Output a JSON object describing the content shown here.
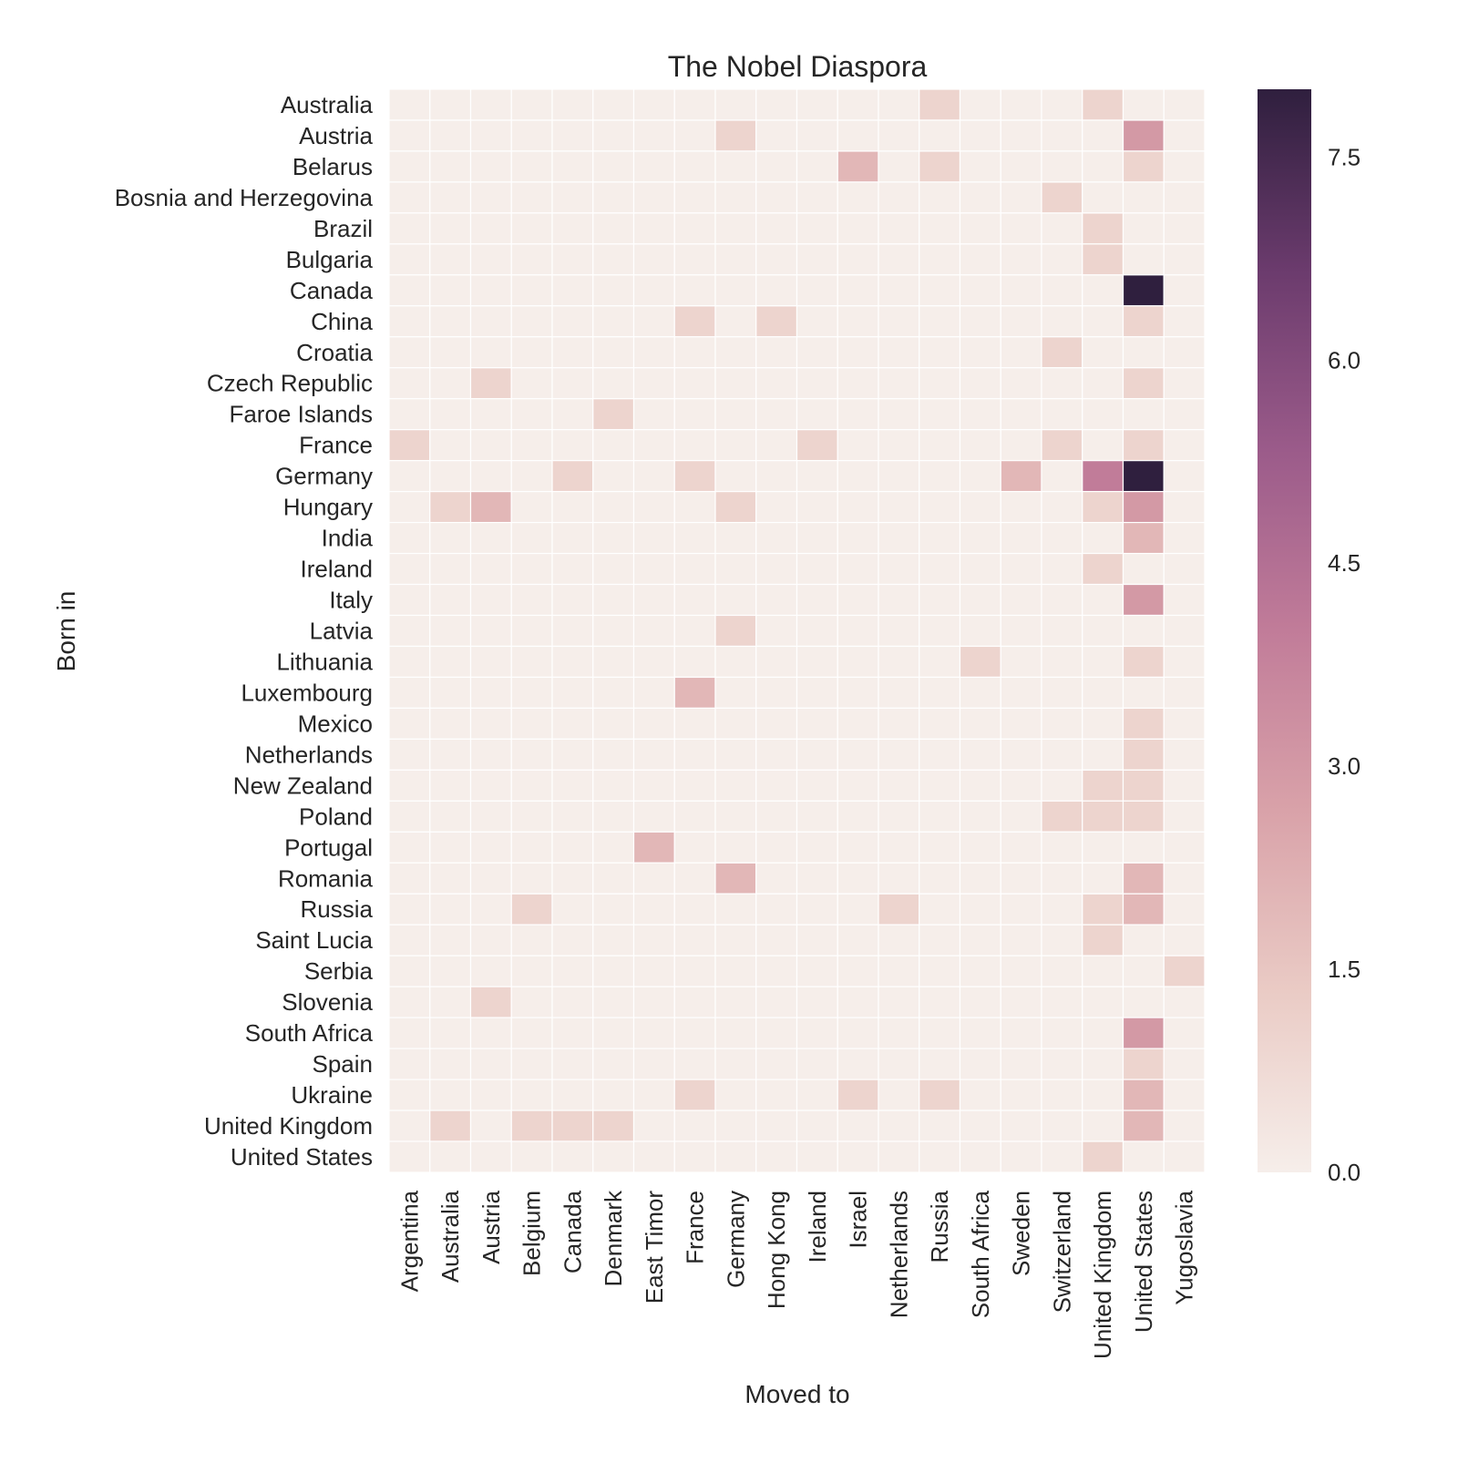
{
  "chart_data": {
    "type": "heatmap",
    "title": "The Nobel Diaspora",
    "xlabel": "Moved to",
    "ylabel": "Born in",
    "x_categories": [
      "Argentina",
      "Australia",
      "Austria",
      "Belgium",
      "Canada",
      "Denmark",
      "East Timor",
      "France",
      "Germany",
      "Hong Kong",
      "Ireland",
      "Israel",
      "Netherlands",
      "Russia",
      "South Africa",
      "Sweden",
      "Switzerland",
      "United Kingdom",
      "United States",
      "Yugoslavia"
    ],
    "y_categories": [
      "Australia",
      "Austria",
      "Belarus",
      "Bosnia and Herzegovina",
      "Brazil",
      "Bulgaria",
      "Canada",
      "China",
      "Croatia",
      "Czech Republic",
      "Faroe Islands",
      "France",
      "Germany",
      "Hungary",
      "India",
      "Ireland",
      "Italy",
      "Latvia",
      "Lithuania",
      "Luxembourg",
      "Mexico",
      "Netherlands",
      "New Zealand",
      "Poland",
      "Portugal",
      "Romania",
      "Russia",
      "Saint Lucia",
      "Serbia",
      "Slovenia",
      "South Africa",
      "Spain",
      "Ukraine",
      "United Kingdom",
      "United States"
    ],
    "values": [
      [
        0,
        0,
        0,
        0,
        0,
        0,
        0,
        0,
        0,
        0,
        0,
        0,
        0,
        1,
        0,
        0,
        0,
        1,
        0,
        0
      ],
      [
        0,
        0,
        0,
        0,
        0,
        0,
        0,
        0,
        1,
        0,
        0,
        0,
        0,
        0,
        0,
        0,
        0,
        0,
        3,
        0
      ],
      [
        0,
        0,
        0,
        0,
        0,
        0,
        0,
        0,
        0,
        0,
        0,
        2,
        0,
        1,
        0,
        0,
        0,
        0,
        1,
        0
      ],
      [
        0,
        0,
        0,
        0,
        0,
        0,
        0,
        0,
        0,
        0,
        0,
        0,
        0,
        0,
        0,
        0,
        1,
        0,
        0,
        0
      ],
      [
        0,
        0,
        0,
        0,
        0,
        0,
        0,
        0,
        0,
        0,
        0,
        0,
        0,
        0,
        0,
        0,
        0,
        1,
        0,
        0
      ],
      [
        0,
        0,
        0,
        0,
        0,
        0,
        0,
        0,
        0,
        0,
        0,
        0,
        0,
        0,
        0,
        0,
        0,
        1,
        0,
        0
      ],
      [
        0,
        0,
        0,
        0,
        0,
        0,
        0,
        0,
        0,
        0,
        0,
        0,
        0,
        0,
        0,
        0,
        0,
        0,
        8,
        0
      ],
      [
        0,
        0,
        0,
        0,
        0,
        0,
        0,
        1,
        0,
        1,
        0,
        0,
        0,
        0,
        0,
        0,
        0,
        0,
        1,
        0
      ],
      [
        0,
        0,
        0,
        0,
        0,
        0,
        0,
        0,
        0,
        0,
        0,
        0,
        0,
        0,
        0,
        0,
        1,
        0,
        0,
        0
      ],
      [
        0,
        0,
        1,
        0,
        0,
        0,
        0,
        0,
        0,
        0,
        0,
        0,
        0,
        0,
        0,
        0,
        0,
        0,
        1,
        0
      ],
      [
        0,
        0,
        0,
        0,
        0,
        1,
        0,
        0,
        0,
        0,
        0,
        0,
        0,
        0,
        0,
        0,
        0,
        0,
        0,
        0
      ],
      [
        1,
        0,
        0,
        0,
        0,
        0,
        0,
        0,
        0,
        0,
        1,
        0,
        0,
        0,
        0,
        0,
        1,
        0,
        1,
        0
      ],
      [
        0,
        0,
        0,
        0,
        1,
        0,
        0,
        1,
        0,
        0,
        0,
        0,
        0,
        0,
        0,
        2,
        0,
        4,
        8,
        0
      ],
      [
        0,
        1,
        2,
        0,
        0,
        0,
        0,
        0,
        1,
        0,
        0,
        0,
        0,
        0,
        0,
        0,
        0,
        1,
        3,
        0
      ],
      [
        0,
        0,
        0,
        0,
        0,
        0,
        0,
        0,
        0,
        0,
        0,
        0,
        0,
        0,
        0,
        0,
        0,
        0,
        2,
        0
      ],
      [
        0,
        0,
        0,
        0,
        0,
        0,
        0,
        0,
        0,
        0,
        0,
        0,
        0,
        0,
        0,
        0,
        0,
        1,
        0,
        0
      ],
      [
        0,
        0,
        0,
        0,
        0,
        0,
        0,
        0,
        0,
        0,
        0,
        0,
        0,
        0,
        0,
        0,
        0,
        0,
        3,
        0
      ],
      [
        0,
        0,
        0,
        0,
        0,
        0,
        0,
        0,
        1,
        0,
        0,
        0,
        0,
        0,
        0,
        0,
        0,
        0,
        0,
        0
      ],
      [
        0,
        0,
        0,
        0,
        0,
        0,
        0,
        0,
        0,
        0,
        0,
        0,
        0,
        0,
        1,
        0,
        0,
        0,
        1,
        0
      ],
      [
        0,
        0,
        0,
        0,
        0,
        0,
        0,
        2,
        0,
        0,
        0,
        0,
        0,
        0,
        0,
        0,
        0,
        0,
        0,
        0
      ],
      [
        0,
        0,
        0,
        0,
        0,
        0,
        0,
        0,
        0,
        0,
        0,
        0,
        0,
        0,
        0,
        0,
        0,
        0,
        1,
        0
      ],
      [
        0,
        0,
        0,
        0,
        0,
        0,
        0,
        0,
        0,
        0,
        0,
        0,
        0,
        0,
        0,
        0,
        0,
        0,
        1,
        0
      ],
      [
        0,
        0,
        0,
        0,
        0,
        0,
        0,
        0,
        0,
        0,
        0,
        0,
        0,
        0,
        0,
        0,
        0,
        1,
        1,
        0
      ],
      [
        0,
        0,
        0,
        0,
        0,
        0,
        0,
        0,
        0,
        0,
        0,
        0,
        0,
        0,
        0,
        0,
        1,
        1,
        1,
        0
      ],
      [
        0,
        0,
        0,
        0,
        0,
        0,
        2,
        0,
        0,
        0,
        0,
        0,
        0,
        0,
        0,
        0,
        0,
        0,
        0,
        0
      ],
      [
        0,
        0,
        0,
        0,
        0,
        0,
        0,
        0,
        2,
        0,
        0,
        0,
        0,
        0,
        0,
        0,
        0,
        0,
        2,
        0
      ],
      [
        0,
        0,
        0,
        1,
        0,
        0,
        0,
        0,
        0,
        0,
        0,
        0,
        1,
        0,
        0,
        0,
        0,
        1,
        2,
        0
      ],
      [
        0,
        0,
        0,
        0,
        0,
        0,
        0,
        0,
        0,
        0,
        0,
        0,
        0,
        0,
        0,
        0,
        0,
        1,
        0,
        0
      ],
      [
        0,
        0,
        0,
        0,
        0,
        0,
        0,
        0,
        0,
        0,
        0,
        0,
        0,
        0,
        0,
        0,
        0,
        0,
        0,
        1
      ],
      [
        0,
        0,
        1,
        0,
        0,
        0,
        0,
        0,
        0,
        0,
        0,
        0,
        0,
        0,
        0,
        0,
        0,
        0,
        0,
        0
      ],
      [
        0,
        0,
        0,
        0,
        0,
        0,
        0,
        0,
        0,
        0,
        0,
        0,
        0,
        0,
        0,
        0,
        0,
        0,
        3,
        0
      ],
      [
        0,
        0,
        0,
        0,
        0,
        0,
        0,
        0,
        0,
        0,
        0,
        0,
        0,
        0,
        0,
        0,
        0,
        0,
        1,
        0
      ],
      [
        0,
        0,
        0,
        0,
        0,
        0,
        0,
        1,
        0,
        0,
        0,
        1,
        0,
        1,
        0,
        0,
        0,
        0,
        2,
        0
      ],
      [
        0,
        1,
        0,
        1,
        1,
        1,
        0,
        0,
        0,
        0,
        0,
        0,
        0,
        0,
        0,
        0,
        0,
        0,
        2,
        0
      ],
      [
        0,
        0,
        0,
        0,
        0,
        0,
        0,
        0,
        0,
        0,
        0,
        0,
        0,
        0,
        0,
        0,
        0,
        1,
        0,
        0
      ]
    ],
    "vmin": 0,
    "vmax": 8,
    "colorbar_ticks": [
      "0.0",
      "1.5",
      "3.0",
      "4.5",
      "6.0",
      "7.5"
    ],
    "colorbar_tick_values": [
      0,
      1.5,
      3.0,
      4.5,
      6.0,
      7.5
    ],
    "colormap_stops": [
      "#f6eeea",
      "#eacbc5",
      "#d9a2a9",
      "#c17c99",
      "#9b5b8a",
      "#6b3b6d",
      "#2f1f3e"
    ],
    "cell_border_color": "#ffffff"
  }
}
